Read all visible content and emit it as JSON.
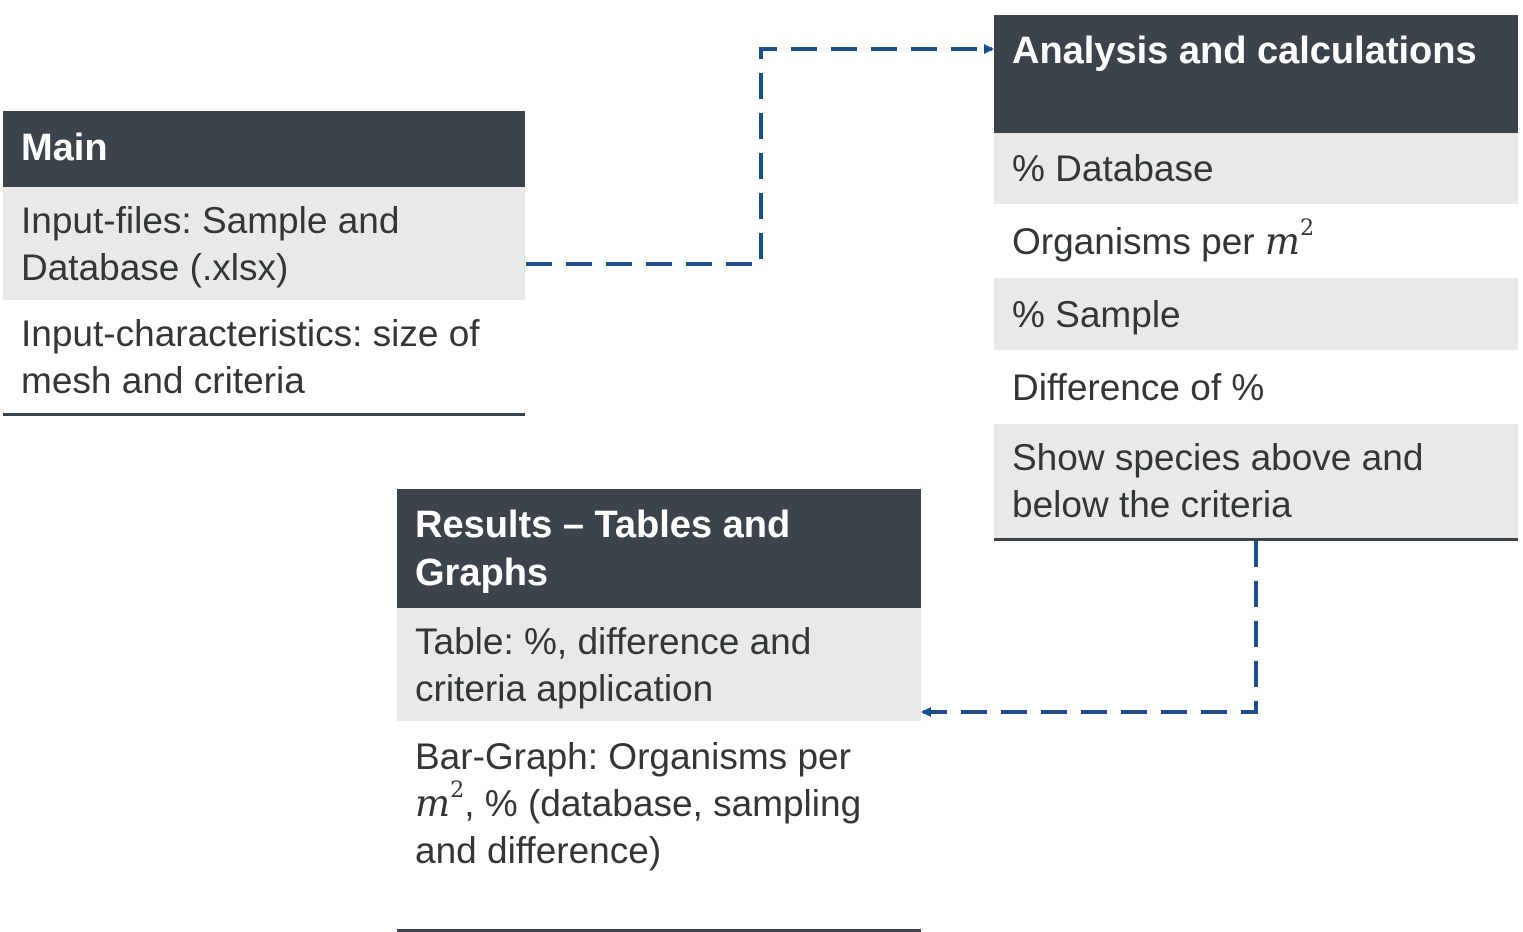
{
  "colors": {
    "header_bg": "#3d434a",
    "row_shade": "#e8e9e8",
    "connector": "#1b4f8a"
  },
  "boxes": {
    "main": {
      "title": "Main",
      "rows": [
        "Input-files: Sample and Database (.xlsx)",
        "Input-characteristics: size of mesh and criteria"
      ]
    },
    "analysis": {
      "title": "Analysis and calculations",
      "rows": [
        "% Database",
        "Organisms per",
        "% Sample",
        "Difference of %",
        "Show species above and below the criteria"
      ],
      "math_unit": "m",
      "math_exp": "2"
    },
    "results": {
      "title": "Results – Tables and Graphs",
      "rows": [
        "Table: %, difference and criteria application",
        "Bar-Graph: Organisms per",
        ", % (database, sampling and difference)"
      ],
      "math_unit": "m",
      "math_exp": "2"
    }
  },
  "connectors": [
    {
      "from": "main",
      "to": "analysis",
      "style": "dashed"
    },
    {
      "from": "analysis",
      "to": "results",
      "style": "dashed"
    }
  ]
}
